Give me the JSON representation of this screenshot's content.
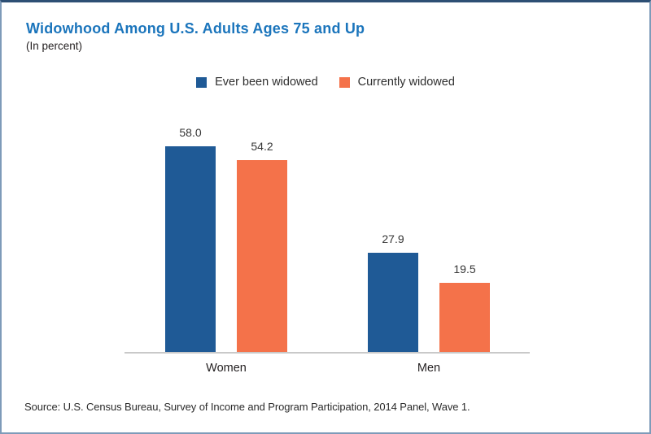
{
  "chart": {
    "title": "Widowhood Among U.S. Adults Ages 75 and Up",
    "subtitle": "(In percent)"
  },
  "chart_data": {
    "type": "bar",
    "title": "Widowhood Among U.S. Adults Ages 75 and Up",
    "subtitle": "(In percent)",
    "categories": [
      "Women",
      "Men"
    ],
    "series": [
      {
        "name": "Ever been widowed",
        "color": "#1f5a96",
        "values": [
          58.0,
          27.9
        ],
        "labels": [
          "58.0",
          "27.9"
        ]
      },
      {
        "name": "Currently widowed",
        "color": "#f4724a",
        "values": [
          54.2,
          19.5
        ],
        "labels": [
          "54.2",
          "19.5"
        ]
      }
    ],
    "xlabel": "",
    "ylabel": "",
    "ylim": [
      0,
      66
    ],
    "grid": false,
    "legend_position": "top-center",
    "value_labels_shown": true
  },
  "source": {
    "text": "Source: U.S. Census Bureau, Survey of Income and Program Participation, 2014 Panel, Wave 1."
  },
  "colors": {
    "title_blue": "#1b75bc",
    "bar_blue": "#1f5a96",
    "bar_orange": "#f4724a",
    "axis_gray": "#c9c9c9",
    "border_top": "#2d4f74",
    "border_side": "#7e9bb9"
  }
}
